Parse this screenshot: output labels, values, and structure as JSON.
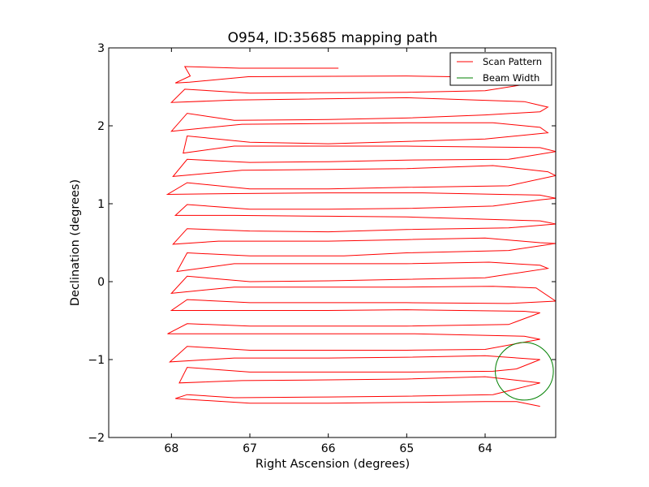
{
  "chart_data": {
    "type": "line",
    "title": "O954, ID:35685 mapping path",
    "xlabel": "Right Ascension (degrees)",
    "ylabel": "Declination (degrees)",
    "xlim": [
      68.8,
      63.1
    ],
    "ylim": [
      -2,
      3
    ],
    "x_ticks": [
      {
        "value": 68,
        "label": "68"
      },
      {
        "value": 67,
        "label": "67"
      },
      {
        "value": 66,
        "label": "66"
      },
      {
        "value": 65,
        "label": "65"
      },
      {
        "value": 64,
        "label": "64"
      }
    ],
    "y_ticks": [
      {
        "value": -2,
        "label": "−2"
      },
      {
        "value": -1,
        "label": "−1"
      },
      {
        "value": 0,
        "label": "0"
      },
      {
        "value": 1,
        "label": "1"
      },
      {
        "value": 2,
        "label": "2"
      },
      {
        "value": 3,
        "label": "3"
      }
    ],
    "grid": false,
    "legend": {
      "placement": "top-right",
      "entries": [
        "Scan Pattern",
        "Beam Width"
      ]
    },
    "series": [
      {
        "name": "Scan Pattern",
        "color": "#ff0000",
        "points": [
          [
            65.87,
            2.74
          ],
          [
            67.13,
            2.74
          ],
          [
            67.83,
            2.76
          ],
          [
            67.76,
            2.64
          ],
          [
            67.95,
            2.55
          ],
          [
            67.77,
            2.56
          ],
          [
            67.02,
            2.63
          ],
          [
            65.0,
            2.64
          ],
          [
            63.74,
            2.62
          ],
          [
            63.5,
            2.53
          ],
          [
            64.0,
            2.45
          ],
          [
            65.0,
            2.43
          ],
          [
            67.0,
            2.42
          ],
          [
            67.83,
            2.47
          ],
          [
            68.0,
            2.3
          ],
          [
            67.2,
            2.33
          ],
          [
            65.0,
            2.36
          ],
          [
            63.5,
            2.31
          ],
          [
            63.2,
            2.24
          ],
          [
            63.3,
            2.18
          ],
          [
            64.0,
            2.14
          ],
          [
            65.0,
            2.1
          ],
          [
            66.0,
            2.08
          ],
          [
            67.2,
            2.07
          ],
          [
            67.8,
            2.16
          ],
          [
            68.0,
            1.93
          ],
          [
            67.1,
            2.02
          ],
          [
            66.0,
            2.03
          ],
          [
            65.0,
            2.04
          ],
          [
            63.9,
            2.04
          ],
          [
            63.3,
            1.98
          ],
          [
            63.2,
            1.91
          ],
          [
            64.0,
            1.83
          ],
          [
            65.0,
            1.8
          ],
          [
            66.0,
            1.77
          ],
          [
            67.0,
            1.79
          ],
          [
            67.8,
            1.87
          ],
          [
            67.85,
            1.65
          ],
          [
            67.2,
            1.74
          ],
          [
            66.0,
            1.74
          ],
          [
            65.0,
            1.74
          ],
          [
            63.3,
            1.72
          ],
          [
            63.1,
            1.67
          ],
          [
            63.7,
            1.57
          ],
          [
            65.0,
            1.56
          ],
          [
            66.0,
            1.54
          ],
          [
            67.0,
            1.53
          ],
          [
            67.8,
            1.57
          ],
          [
            67.98,
            1.35
          ],
          [
            67.1,
            1.43
          ],
          [
            66.0,
            1.44
          ],
          [
            65.0,
            1.45
          ],
          [
            63.9,
            1.49
          ],
          [
            63.2,
            1.41
          ],
          [
            63.1,
            1.36
          ],
          [
            63.7,
            1.23
          ],
          [
            65.0,
            1.21
          ],
          [
            66.0,
            1.19
          ],
          [
            67.0,
            1.19
          ],
          [
            67.8,
            1.27
          ],
          [
            68.05,
            1.12
          ],
          [
            67.2,
            1.13
          ],
          [
            66.0,
            1.14
          ],
          [
            64.8,
            1.14
          ],
          [
            63.3,
            1.11
          ],
          [
            63.1,
            1.07
          ],
          [
            63.3,
            1.05
          ],
          [
            63.9,
            0.97
          ],
          [
            65.0,
            0.94
          ],
          [
            66.0,
            0.93
          ],
          [
            67.0,
            0.93
          ],
          [
            67.8,
            0.99
          ],
          [
            67.95,
            0.85
          ],
          [
            67.2,
            0.85
          ],
          [
            66.0,
            0.84
          ],
          [
            65.0,
            0.83
          ],
          [
            63.3,
            0.78
          ],
          [
            63.2,
            0.76
          ],
          [
            63.1,
            0.74
          ],
          [
            63.7,
            0.69
          ],
          [
            65.0,
            0.67
          ],
          [
            66.0,
            0.64
          ],
          [
            67.0,
            0.65
          ],
          [
            67.8,
            0.68
          ],
          [
            67.98,
            0.48
          ],
          [
            67.4,
            0.52
          ],
          [
            66.0,
            0.52
          ],
          [
            65.0,
            0.54
          ],
          [
            64.0,
            0.56
          ],
          [
            63.3,
            0.5
          ],
          [
            63.1,
            0.49
          ],
          [
            63.7,
            0.4
          ],
          [
            65.0,
            0.37
          ],
          [
            65.8,
            0.33
          ],
          [
            67.0,
            0.33
          ],
          [
            67.8,
            0.37
          ],
          [
            67.93,
            0.13
          ],
          [
            67.2,
            0.23
          ],
          [
            66.0,
            0.23
          ],
          [
            65.0,
            0.23
          ],
          [
            63.95,
            0.25
          ],
          [
            63.3,
            0.21
          ],
          [
            63.2,
            0.17
          ],
          [
            64.0,
            0.05
          ],
          [
            65.0,
            0.03
          ],
          [
            66.0,
            0.01
          ],
          [
            67.0,
            0.0
          ],
          [
            67.8,
            0.07
          ],
          [
            68.0,
            -0.15
          ],
          [
            67.2,
            -0.07
          ],
          [
            66.0,
            -0.07
          ],
          [
            65.0,
            -0.07
          ],
          [
            63.9,
            -0.06
          ],
          [
            63.35,
            -0.08
          ],
          [
            63.1,
            -0.25
          ],
          [
            63.7,
            -0.28
          ],
          [
            65.0,
            -0.27
          ],
          [
            66.0,
            -0.27
          ],
          [
            67.0,
            -0.27
          ],
          [
            67.8,
            -0.23
          ],
          [
            68.0,
            -0.37
          ],
          [
            67.2,
            -0.37
          ],
          [
            66.0,
            -0.37
          ],
          [
            65.0,
            -0.36
          ],
          [
            63.5,
            -0.38
          ],
          [
            63.3,
            -0.4
          ],
          [
            63.7,
            -0.55
          ],
          [
            65.0,
            -0.57
          ],
          [
            66.0,
            -0.57
          ],
          [
            67.0,
            -0.57
          ],
          [
            67.8,
            -0.54
          ],
          [
            68.05,
            -0.67
          ],
          [
            67.1,
            -0.67
          ],
          [
            66.0,
            -0.67
          ],
          [
            64.9,
            -0.67
          ],
          [
            63.5,
            -0.7
          ],
          [
            63.3,
            -0.74
          ],
          [
            64.0,
            -0.87
          ],
          [
            65.0,
            -0.88
          ],
          [
            66.0,
            -0.88
          ],
          [
            67.0,
            -0.88
          ],
          [
            67.8,
            -0.83
          ],
          [
            68.02,
            -1.03
          ],
          [
            67.2,
            -0.98
          ],
          [
            66.0,
            -0.98
          ],
          [
            65.0,
            -0.97
          ],
          [
            64.0,
            -0.95
          ],
          [
            63.3,
            -1.0
          ],
          [
            63.6,
            -1.12
          ],
          [
            63.9,
            -1.15
          ],
          [
            65.0,
            -1.16
          ],
          [
            66.0,
            -1.16
          ],
          [
            67.0,
            -1.16
          ],
          [
            67.8,
            -1.1
          ],
          [
            67.9,
            -1.3
          ],
          [
            67.1,
            -1.27
          ],
          [
            66.0,
            -1.26
          ],
          [
            65.0,
            -1.25
          ],
          [
            64.0,
            -1.22
          ],
          [
            63.3,
            -1.3
          ],
          [
            63.9,
            -1.45
          ],
          [
            65.0,
            -1.47
          ],
          [
            66.0,
            -1.48
          ],
          [
            67.2,
            -1.49
          ],
          [
            67.8,
            -1.45
          ],
          [
            67.95,
            -1.5
          ],
          [
            67.0,
            -1.56
          ],
          [
            66.0,
            -1.56
          ],
          [
            65.0,
            -1.55
          ],
          [
            64.0,
            -1.54
          ],
          [
            63.6,
            -1.54
          ],
          [
            63.35,
            -1.59
          ],
          [
            63.3,
            -1.6
          ]
        ]
      },
      {
        "name": "Beam Width",
        "color": "#008000",
        "shape": "circle",
        "center": [
          63.5,
          -1.15
        ],
        "radius": 0.37
      }
    ]
  }
}
